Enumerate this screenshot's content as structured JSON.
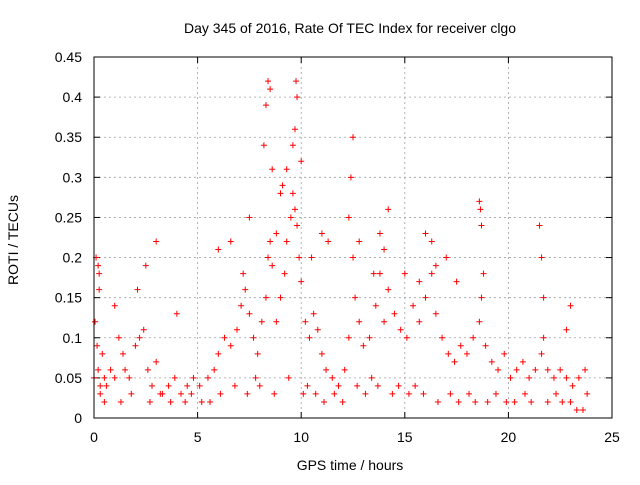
{
  "chart_data": {
    "type": "scatter",
    "title": "Day 345 of 2016, Rate Of TEC Index for receiver clgo",
    "xlabel": "GPS time / hours",
    "ylabel": "ROTI / TECUs",
    "xlim": [
      0,
      25
    ],
    "ylim": [
      0,
      0.45
    ],
    "x_ticks": [
      0,
      5,
      10,
      15,
      20,
      25
    ],
    "x_tick_labels": [
      "0",
      "5",
      "10",
      "15",
      "20",
      "25"
    ],
    "y_ticks": [
      0,
      0.05,
      0.1,
      0.15,
      0.2,
      0.25,
      0.3,
      0.35,
      0.4,
      0.45
    ],
    "y_tick_labels": [
      "0",
      "0.05",
      "0.1",
      "0.15",
      "0.2",
      "0.25",
      "0.3",
      "0.35",
      "0.4",
      "0.45"
    ],
    "grid": true,
    "marker": "plus",
    "series_color": "#ff0000",
    "series": [
      {
        "x": [
          0.0,
          0.05,
          0.1,
          0.15,
          0.2,
          0.25,
          0.3,
          0.4,
          0.5,
          0.6,
          0.8,
          1.0,
          1.2,
          1.4,
          1.5,
          1.7,
          2.0,
          2.2,
          2.4,
          2.6,
          2.8,
          3.0,
          3.3,
          3.6,
          3.9,
          4.2,
          4.5,
          4.8,
          5.1,
          5.5,
          5.8,
          6.0,
          6.3,
          6.6,
          6.9,
          7.1,
          7.3,
          7.5,
          7.7,
          7.9,
          8.1,
          8.3,
          8.4,
          8.5,
          8.6,
          8.8,
          9.0,
          9.2,
          9.3,
          9.5,
          9.6,
          9.7,
          9.8,
          9.9,
          10.0,
          10.2,
          10.4,
          10.6,
          10.8,
          11.0,
          11.2,
          11.5,
          11.8,
          12.1,
          12.3,
          12.5,
          12.6,
          12.8,
          13.0,
          13.3,
          13.6,
          13.8,
          14.0,
          14.2,
          14.5,
          14.8,
          15.1,
          15.4,
          15.7,
          16.0,
          16.3,
          16.5,
          16.8,
          17.1,
          17.4,
          17.7,
          18.0,
          18.3,
          18.6,
          18.7,
          18.9,
          19.2,
          19.5,
          19.8,
          20.1,
          20.4,
          20.7,
          21.0,
          21.3,
          21.6,
          21.7,
          21.9,
          22.2,
          22.5,
          22.8,
          23.1,
          23.4,
          23.7,
          23.8,
          0.2,
          0.25,
          1.0,
          2.1,
          2.5,
          3.0,
          4.0,
          6.0,
          6.6,
          7.2,
          7.5,
          8.2,
          8.3,
          8.4,
          8.5,
          8.6,
          8.8,
          9.0,
          9.1,
          9.3,
          9.6,
          9.7,
          9.75,
          9.8,
          10.0,
          10.5,
          11.0,
          11.3,
          12.3,
          12.4,
          12.5,
          12.8,
          13.5,
          13.8,
          14.0,
          14.2,
          15.0,
          15.7,
          16.0,
          16.3,
          16.5,
          17.0,
          17.5,
          18.6,
          18.65,
          18.7,
          18.8,
          21.5,
          21.6,
          21.7,
          22.8,
          23.0,
          0.3,
          0.5,
          1.3,
          1.8,
          2.7,
          3.2,
          3.7,
          4.4,
          4.7,
          5.2,
          5.6,
          6.1,
          6.8,
          7.4,
          7.8,
          8.0,
          8.7,
          9.4,
          10.1,
          10.3,
          10.7,
          11.1,
          11.6,
          12.0,
          12.7,
          13.1,
          13.4,
          13.7,
          14.4,
          14.7,
          15.2,
          15.5,
          15.9,
          16.6,
          17.2,
          17.6,
          18.1,
          18.4,
          19.0,
          19.4,
          19.9,
          20.3,
          20.8,
          21.1,
          21.9,
          22.3,
          22.6,
          23.0,
          23.3,
          23.6
        ],
        "y": [
          0.05,
          0.12,
          0.2,
          0.09,
          0.06,
          0.18,
          0.04,
          0.08,
          0.05,
          0.04,
          0.06,
          0.05,
          0.1,
          0.08,
          0.06,
          0.05,
          0.09,
          0.1,
          0.11,
          0.06,
          0.04,
          0.07,
          0.03,
          0.04,
          0.05,
          0.03,
          0.04,
          0.05,
          0.04,
          0.05,
          0.06,
          0.08,
          0.1,
          0.09,
          0.11,
          0.14,
          0.16,
          0.13,
          0.1,
          0.08,
          0.12,
          0.15,
          0.2,
          0.22,
          0.19,
          0.12,
          0.15,
          0.18,
          0.22,
          0.25,
          0.28,
          0.26,
          0.24,
          0.2,
          0.17,
          0.12,
          0.1,
          0.13,
          0.11,
          0.08,
          0.06,
          0.05,
          0.04,
          0.06,
          0.1,
          0.2,
          0.15,
          0.12,
          0.09,
          0.1,
          0.14,
          0.18,
          0.12,
          0.16,
          0.13,
          0.11,
          0.1,
          0.14,
          0.12,
          0.15,
          0.18,
          0.13,
          0.1,
          0.08,
          0.07,
          0.09,
          0.08,
          0.1,
          0.12,
          0.15,
          0.09,
          0.07,
          0.06,
          0.08,
          0.05,
          0.06,
          0.07,
          0.05,
          0.06,
          0.08,
          0.1,
          0.06,
          0.05,
          0.06,
          0.05,
          0.04,
          0.05,
          0.06,
          0.03,
          0.19,
          0.16,
          0.14,
          0.16,
          0.19,
          0.22,
          0.13,
          0.21,
          0.22,
          0.18,
          0.25,
          0.34,
          0.39,
          0.42,
          0.41,
          0.31,
          0.23,
          0.28,
          0.29,
          0.31,
          0.34,
          0.36,
          0.42,
          0.4,
          0.32,
          0.2,
          0.23,
          0.22,
          0.25,
          0.3,
          0.35,
          0.22,
          0.18,
          0.23,
          0.21,
          0.26,
          0.18,
          0.17,
          0.23,
          0.22,
          0.19,
          0.2,
          0.17,
          0.27,
          0.26,
          0.24,
          0.18,
          0.24,
          0.2,
          0.15,
          0.11,
          0.14,
          0.03,
          0.02,
          0.02,
          0.03,
          0.02,
          0.03,
          0.02,
          0.02,
          0.03,
          0.02,
          0.02,
          0.03,
          0.04,
          0.03,
          0.05,
          0.04,
          0.03,
          0.05,
          0.03,
          0.04,
          0.03,
          0.02,
          0.03,
          0.02,
          0.04,
          0.03,
          0.05,
          0.04,
          0.03,
          0.04,
          0.03,
          0.04,
          0.03,
          0.02,
          0.03,
          0.02,
          0.03,
          0.02,
          0.02,
          0.03,
          0.02,
          0.02,
          0.03,
          0.02,
          0.02,
          0.03,
          0.02,
          0.02,
          0.01,
          0.01
        ]
      }
    ]
  }
}
